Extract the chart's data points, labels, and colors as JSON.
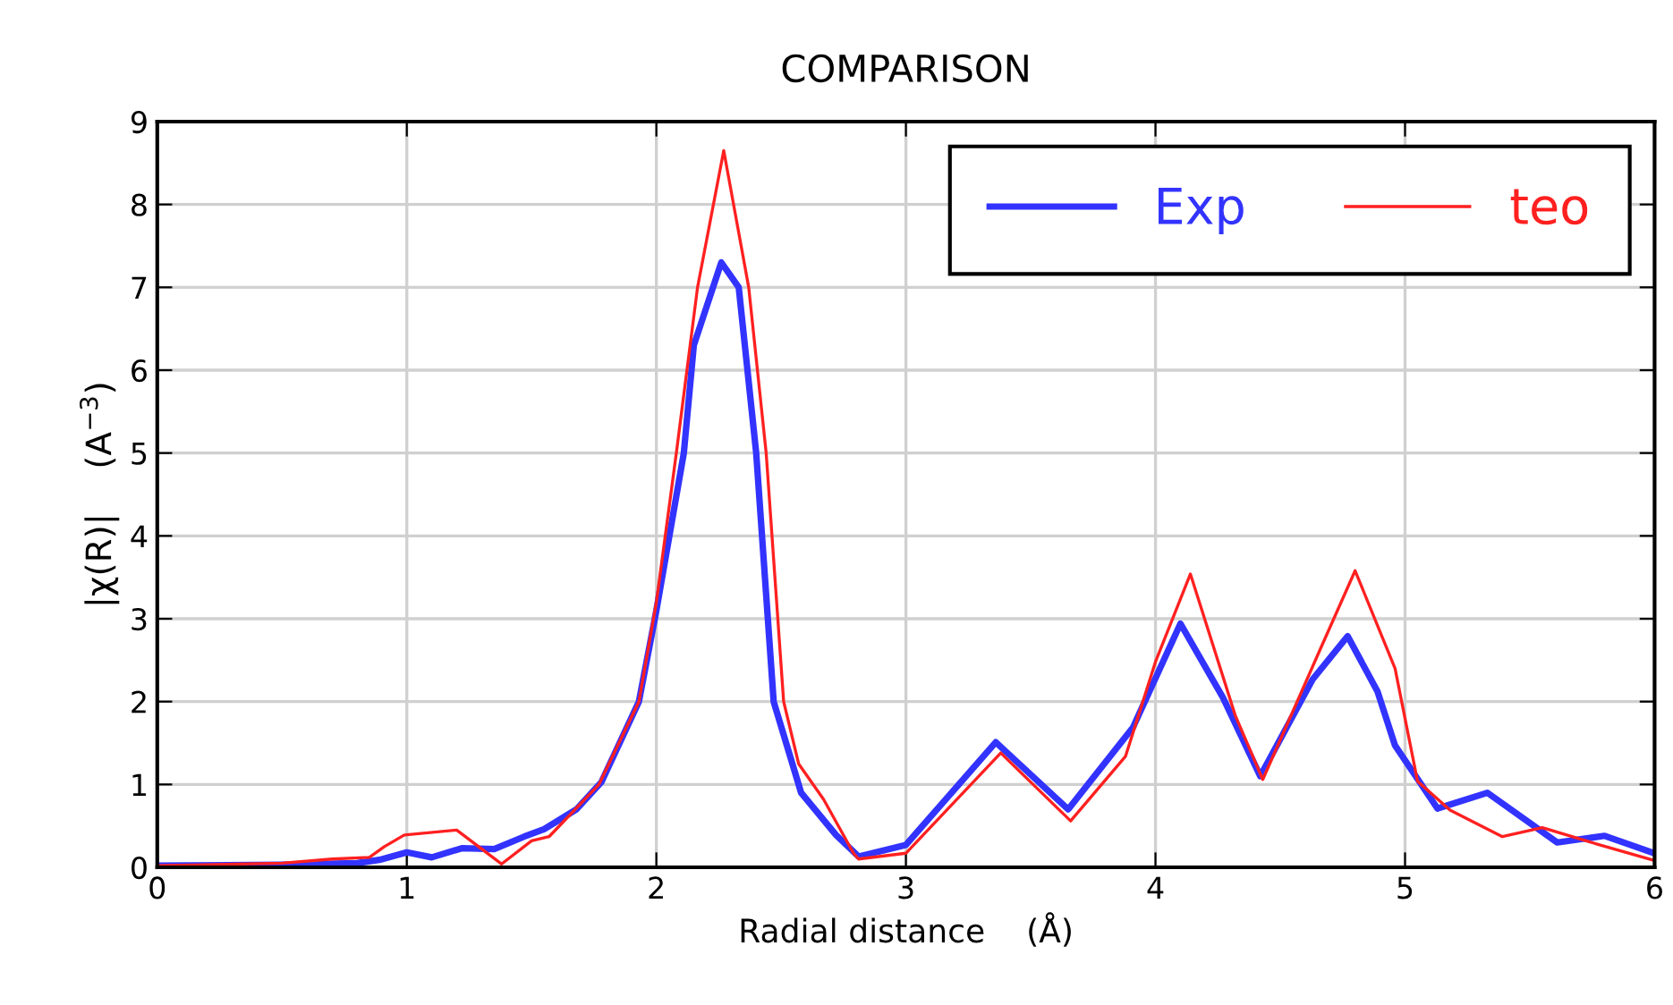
{
  "chart_data": {
    "type": "line",
    "title": "COMPARISON",
    "xlabel": "Radial distance    (Å)",
    "ylabel": "|χ(R)|    (A$^{−3}$)",
    "xlim": [
      0,
      6
    ],
    "ylim": [
      0,
      9
    ],
    "xticks": [
      0,
      1,
      2,
      3,
      4,
      5,
      6
    ],
    "yticks": [
      0,
      1,
      2,
      3,
      4,
      5,
      6,
      7,
      8,
      9
    ],
    "grid": true,
    "legend": "top right",
    "line_style": "solid",
    "series": [
      {
        "name": "Exp",
        "color": "#3333ff",
        "x": [
          0,
          0.5,
          0.8,
          0.89,
          1.0,
          1.1,
          1.22,
          1.35,
          1.47,
          1.55,
          1.68,
          1.78,
          1.93,
          2.0,
          2.11,
          2.15,
          2.26,
          2.33,
          2.4,
          2.47,
          2.58,
          2.72,
          2.81,
          3.0,
          3.36,
          3.65,
          3.91,
          4.1,
          4.27,
          4.42,
          4.63,
          4.77,
          4.89,
          4.96,
          5.13,
          5.33,
          5.61,
          5.8,
          5.99
        ],
        "values": [
          0.02,
          0.03,
          0.05,
          0.09,
          0.18,
          0.12,
          0.23,
          0.22,
          0.37,
          0.46,
          0.7,
          1.03,
          2.0,
          3.1,
          5.0,
          6.3,
          7.3,
          7.0,
          5.0,
          2.0,
          0.9,
          0.39,
          0.13,
          0.27,
          1.51,
          0.7,
          1.69,
          2.94,
          2.05,
          1.1,
          2.27,
          2.79,
          2.12,
          1.47,
          0.71,
          0.9,
          0.3,
          0.38,
          0.18
        ]
      },
      {
        "name": "teo",
        "color": "#ff2020",
        "x": [
          0,
          0.5,
          0.7,
          0.85,
          0.91,
          0.99,
          1.2,
          1.38,
          1.5,
          1.57,
          1.77,
          1.93,
          2.0,
          2.08,
          2.165,
          2.27,
          2.37,
          2.44,
          2.51,
          2.57,
          2.67,
          2.79,
          2.81,
          3.0,
          3.38,
          3.66,
          3.88,
          4.0,
          4.14,
          4.32,
          4.43,
          4.66,
          4.8,
          4.96,
          5.05,
          5.18,
          5.39,
          5.55,
          5.77,
          5.99
        ],
        "values": [
          0.02,
          0.05,
          0.1,
          0.12,
          0.25,
          0.39,
          0.45,
          0.04,
          0.32,
          0.37,
          1.0,
          2.0,
          3.2,
          5.0,
          7.0,
          8.65,
          7.0,
          5.0,
          2.0,
          1.25,
          0.82,
          0.17,
          0.1,
          0.17,
          1.38,
          0.56,
          1.34,
          2.48,
          3.54,
          1.83,
          1.06,
          2.63,
          3.58,
          2.4,
          1.04,
          0.69,
          0.37,
          0.48,
          0.28,
          0.09
        ]
      }
    ]
  }
}
